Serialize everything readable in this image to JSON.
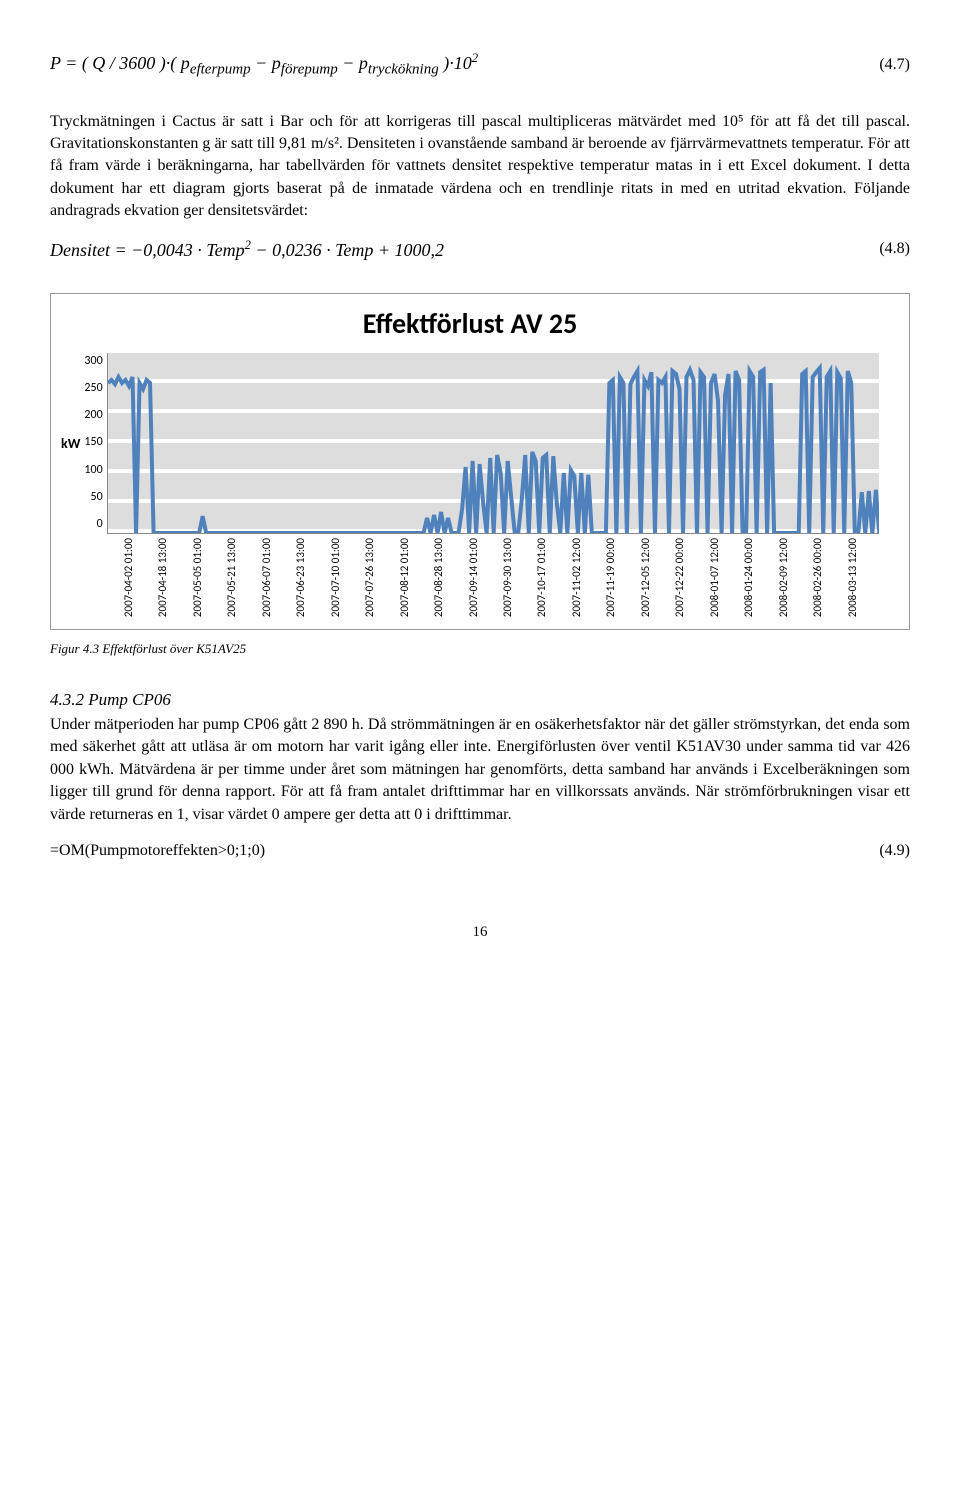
{
  "eq1": {
    "html": "P = ( Q / 3600 )·( p<sub>efterpump</sub> − p<sub>förepump</sub> − p<sub>tryckökning</sub> )·10<sup>2</sup>",
    "num": "(4.7)"
  },
  "para1": "Tryckmätningen i Cactus är satt i Bar och för att korrigeras till pascal multipliceras mätvärdet med 10⁵ för att få det till pascal. Gravitationskonstanten g är satt till 9,81 m/s². Densiteten i ovanstående samband är beroende av fjärrvärmevattnets temperatur. För att få fram värde i beräkningarna, har tabellvärden för vattnets densitet respektive temperatur matas in i ett Excel dokument. I detta dokument har ett diagram gjorts baserat på de inmatade värdena och en trendlinje ritats in med en utritad ekvation. Följande andragrads ekvation ger densitetsvärdet:",
  "eq2": {
    "html": "Densitet = −0,0043 · Temp<sup>2</sup> − 0,0236 · Temp + 1000,2",
    "num": "(4.8)"
  },
  "chart": {
    "title": "Effektförlust AV 25",
    "ylabel": "kW",
    "yticks": [
      "300",
      "250",
      "200",
      "150",
      "100",
      "50",
      "0"
    ],
    "ylim": [
      0,
      300
    ],
    "series_color": "#4f81bd",
    "grid_color": "#dddddd",
    "background_color": "#ffffff",
    "line_width": 1.4,
    "xticks": [
      "2007-04-02 01:00",
      "2007-04-18 13:00",
      "2007-05-05 01:00",
      "2007-05-21 13:00",
      "2007-06-07 01:00",
      "2007-06-23 13:00",
      "2007-07-10 01:00",
      "2007-07-26 13:00",
      "2007-08-12 01:00",
      "2007-08-28 13:00",
      "2007-09-14 01:00",
      "2007-09-30 13:00",
      "2007-10-17 01:00",
      "2007-11-02 12:00",
      "2007-11-19 00:00",
      "2007-12-05 12:00",
      "2007-12-22 00:00",
      "2008-01-07 12:00",
      "2008-01-24 00:00",
      "2008-02-09 12:00",
      "2008-02-26 00:00",
      "2008-03-13 12:00"
    ],
    "values": [
      250,
      255,
      248,
      260,
      250,
      255,
      245,
      260,
      0,
      250,
      240,
      255,
      250,
      0,
      0,
      0,
      0,
      0,
      0,
      0,
      0,
      0,
      0,
      0,
      0,
      0,
      0,
      28,
      0,
      0,
      0,
      0,
      0,
      0,
      0,
      0,
      0,
      0,
      0,
      0,
      0,
      0,
      0,
      0,
      0,
      0,
      0,
      0,
      0,
      0,
      0,
      0,
      0,
      0,
      0,
      0,
      0,
      0,
      0,
      0,
      0,
      0,
      0,
      0,
      0,
      0,
      0,
      0,
      0,
      0,
      0,
      0,
      0,
      0,
      0,
      0,
      0,
      0,
      0,
      0,
      0,
      0,
      0,
      0,
      0,
      0,
      0,
      0,
      0,
      0,
      0,
      25,
      0,
      30,
      0,
      35,
      0,
      25,
      0,
      0,
      0,
      40,
      110,
      0,
      120,
      0,
      115,
      50,
      0,
      125,
      0,
      130,
      100,
      0,
      120,
      60,
      0,
      0,
      55,
      130,
      0,
      135,
      120,
      0,
      125,
      130,
      0,
      128,
      50,
      0,
      100,
      0,
      105,
      95,
      0,
      100,
      0,
      97,
      0,
      0,
      0,
      0,
      0,
      250,
      255,
      0,
      260,
      250,
      0,
      248,
      260,
      270,
      0,
      255,
      245,
      268,
      0,
      255,
      250,
      260,
      0,
      270,
      265,
      240,
      0,
      260,
      272,
      255,
      0,
      268,
      260,
      0,
      250,
      265,
      220,
      0,
      230,
      265,
      0,
      270,
      255,
      0,
      0,
      270,
      260,
      0,
      268,
      272,
      0,
      250,
      0,
      0,
      0,
      0,
      0,
      0,
      0,
      0,
      265,
      270,
      0,
      260,
      268,
      275,
      0,
      260,
      270,
      0,
      268,
      258,
      0,
      270,
      250,
      0,
      0,
      68,
      0,
      70,
      0,
      72,
      0
    ]
  },
  "fig_caption": "Figur 4.3  Effektförlust över K51AV25",
  "section_head": "4.3.2 Pump CP06",
  "para2": "Under mätperioden har pump CP06 gått 2 890 h. Då strömmätningen är en osäkerhetsfaktor när det gäller strömstyrkan, det enda som med säkerhet gått att utläsa är om motorn har varit igång eller inte. Energiförlusten över ventil K51AV30 under samma tid var 426 000 kWh. Mätvärdena är per timme under året som mätningen har genomförts, detta samband har används i Excelberäkningen som ligger till grund för denna rapport. För att få fram antalet drifttimmar har en villkorssats används. När strömförbrukningen visar ett värde returneras en 1, visar värdet 0 ampere ger detta att 0 i drifttimmar.",
  "eq3": {
    "text": "=OM(Pumpmotoreffekten>0;1;0)",
    "num": "(4.9)"
  },
  "page_number": "16"
}
